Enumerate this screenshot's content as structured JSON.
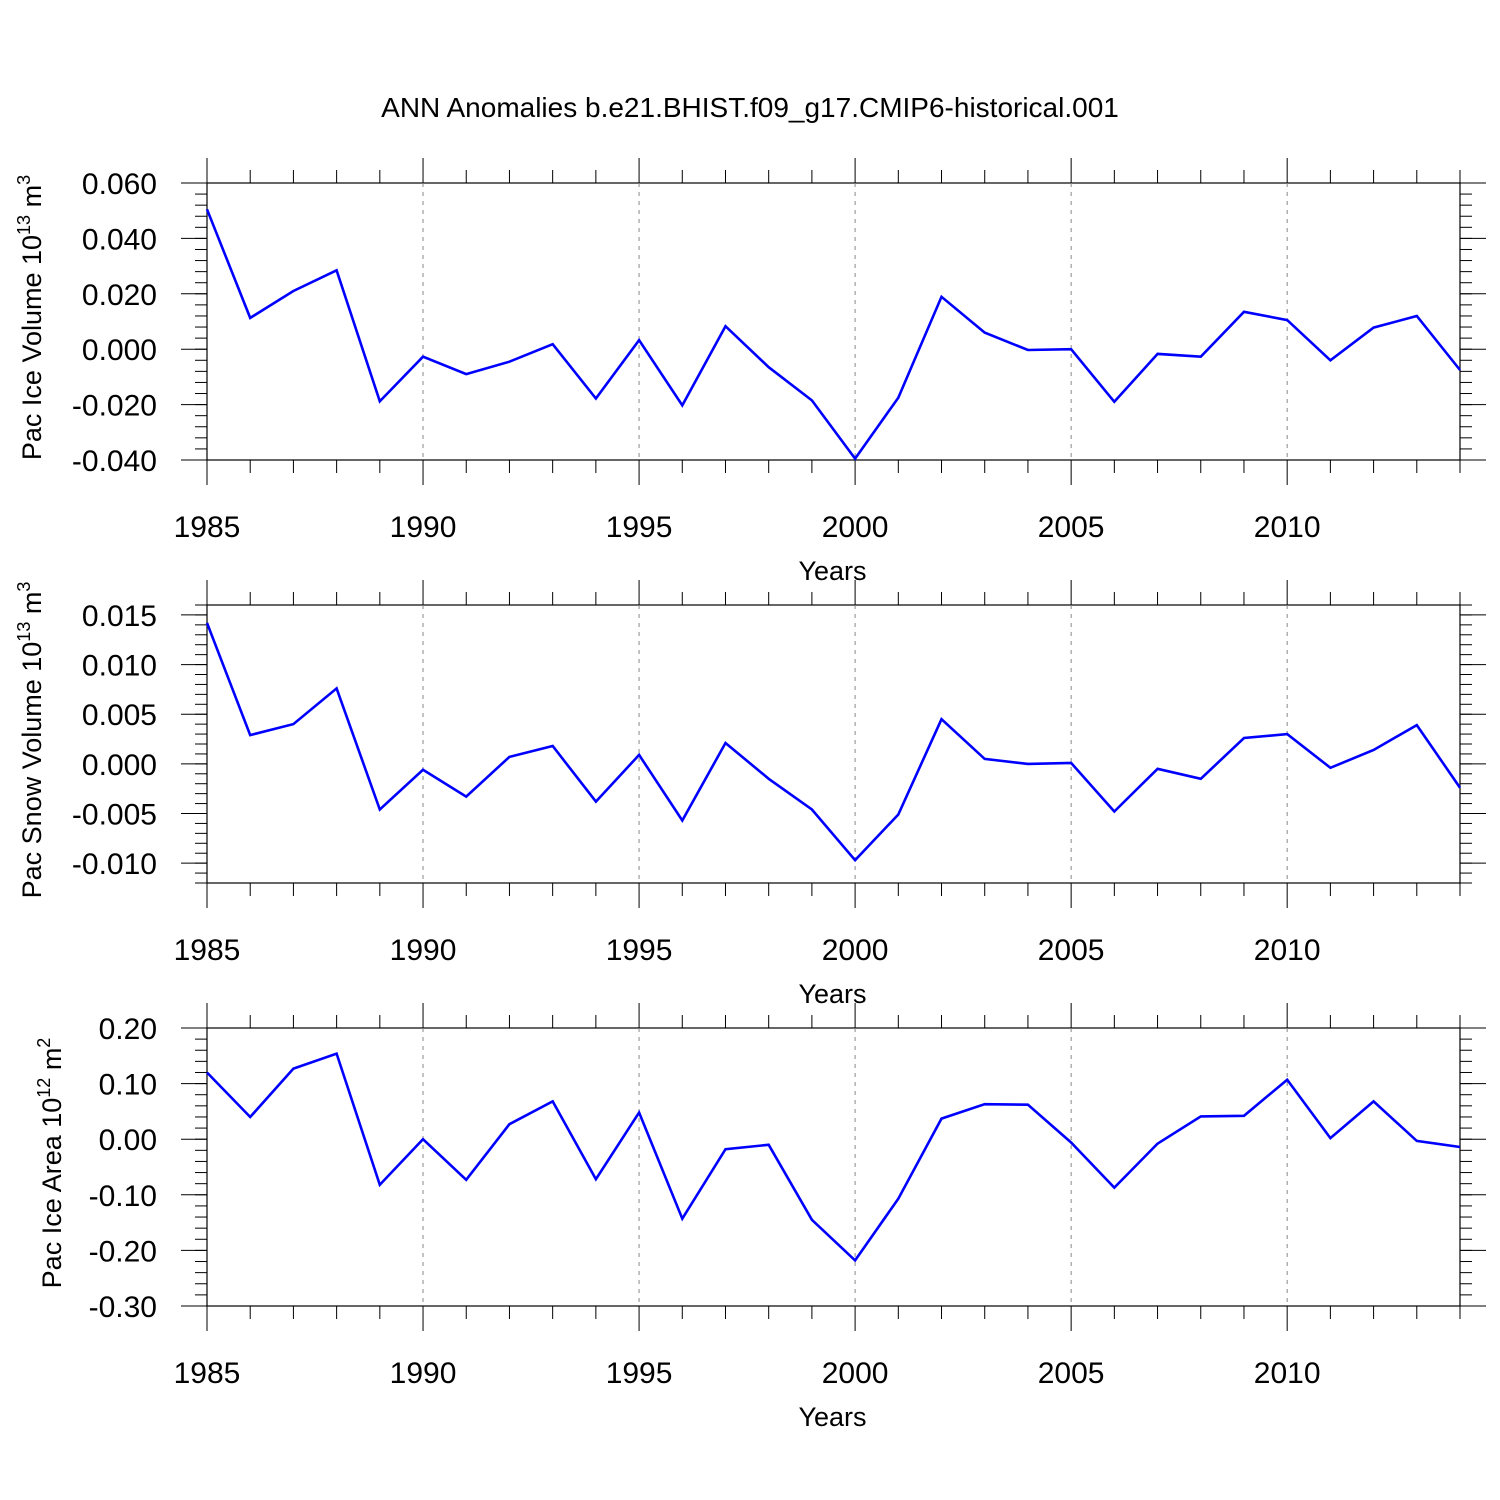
{
  "title": "ANN Anomalies b.e21.BHIST.f09_g17.CMIP6-historical.001",
  "chart_data": [
    {
      "type": "line",
      "ylabel_main": "Pac Ice Volume 10",
      "ylabel_exp": "13",
      "ylabel_unit": "m",
      "ylabel_unit_exp": "3",
      "xlabel": "Years",
      "xlim": [
        1985,
        2014
      ],
      "ylim": [
        -0.04,
        0.06
      ],
      "yticks": [
        -0.04,
        -0.02,
        0.0,
        0.02,
        0.04,
        0.06
      ],
      "ytick_labels": [
        "-0.040",
        "-0.020",
        "0.000",
        "0.020",
        "0.040",
        "0.060"
      ],
      "yminor_step": 0.004,
      "xticks": [
        1985,
        1990,
        1995,
        2000,
        2005,
        2010
      ],
      "xtick_labels": [
        "1985",
        "1990",
        "1995",
        "2000",
        "2005",
        "2010"
      ],
      "grid": "vertical dashed at major x ticks",
      "color": "#0000ff",
      "x": [
        1985,
        1986,
        1987,
        1988,
        1989,
        1990,
        1991,
        1992,
        1993,
        1994,
        1995,
        1996,
        1997,
        1998,
        1999,
        2000,
        2001,
        2002,
        2003,
        2004,
        2005,
        2006,
        2007,
        2008,
        2009,
        2010,
        2011,
        2012,
        2013,
        2014
      ],
      "values": [
        0.0505,
        0.0113,
        0.021,
        0.0285,
        -0.0188,
        -0.0027,
        -0.009,
        -0.0045,
        0.0018,
        -0.0178,
        0.0033,
        -0.0203,
        0.0083,
        -0.0065,
        -0.0185,
        -0.0395,
        -0.0175,
        0.0189,
        0.006,
        -0.0003,
        0.0,
        -0.019,
        -0.0017,
        -0.0027,
        0.0135,
        0.0105,
        -0.004,
        0.0078,
        0.012,
        -0.0075
      ]
    },
    {
      "type": "line",
      "ylabel_main": "Pac Snow Volume 10",
      "ylabel_exp": "13",
      "ylabel_unit": "m",
      "ylabel_unit_exp": "3",
      "xlabel": "Years",
      "xlim": [
        1985,
        2014
      ],
      "ylim": [
        -0.012,
        0.016
      ],
      "yticks": [
        -0.01,
        -0.005,
        0.0,
        0.005,
        0.01,
        0.015
      ],
      "ytick_labels": [
        "-0.010",
        "-0.005",
        "0.000",
        "0.005",
        "0.010",
        "0.015"
      ],
      "yminor_step": 0.001,
      "xticks": [
        1985,
        1990,
        1995,
        2000,
        2005,
        2010
      ],
      "xtick_labels": [
        "1985",
        "1990",
        "1995",
        "2000",
        "2005",
        "2010"
      ],
      "grid": "vertical dashed at major x ticks",
      "color": "#0000ff",
      "x": [
        1985,
        1986,
        1987,
        1988,
        1989,
        1990,
        1991,
        1992,
        1993,
        1994,
        1995,
        1996,
        1997,
        1998,
        1999,
        2000,
        2001,
        2002,
        2003,
        2004,
        2005,
        2006,
        2007,
        2008,
        2009,
        2010,
        2011,
        2012,
        2013,
        2014
      ],
      "values": [
        0.0142,
        0.0029,
        0.004,
        0.0076,
        -0.0046,
        -0.0006,
        -0.0033,
        0.0007,
        0.0018,
        -0.0038,
        0.0009,
        -0.0057,
        0.0021,
        -0.0015,
        -0.0046,
        -0.0097,
        -0.0051,
        0.0045,
        0.0005,
        0.0,
        0.0001,
        -0.0048,
        -0.0005,
        -0.0015,
        0.0026,
        0.003,
        -0.0004,
        0.0014,
        0.0039,
        -0.0024
      ]
    },
    {
      "type": "line",
      "ylabel_main": "Pac Ice Area 10",
      "ylabel_exp": "12",
      "ylabel_unit": "m",
      "ylabel_unit_exp": "2",
      "xlabel": "Years",
      "xlim": [
        1985,
        2014
      ],
      "ylim": [
        -0.3,
        0.2
      ],
      "yticks": [
        -0.3,
        -0.2,
        -0.1,
        0.0,
        0.1,
        0.2
      ],
      "ytick_labels": [
        "-0.30",
        "-0.20",
        "-0.10",
        "0.00",
        "0.10",
        "0.20"
      ],
      "yminor_step": 0.02,
      "xticks": [
        1985,
        1990,
        1995,
        2000,
        2005,
        2010
      ],
      "xtick_labels": [
        "1985",
        "1990",
        "1995",
        "2000",
        "2005",
        "2010"
      ],
      "grid": "vertical dashed at major x ticks",
      "color": "#0000ff",
      "x": [
        1985,
        1986,
        1987,
        1988,
        1989,
        1990,
        1991,
        1992,
        1993,
        1994,
        1995,
        1996,
        1997,
        1998,
        1999,
        2000,
        2001,
        2002,
        2003,
        2004,
        2005,
        2006,
        2007,
        2008,
        2009,
        2010,
        2011,
        2012,
        2013,
        2014
      ],
      "values": [
        0.12,
        0.04,
        0.127,
        0.154,
        -0.082,
        0.0,
        -0.073,
        0.027,
        0.068,
        -0.072,
        0.048,
        -0.143,
        -0.018,
        -0.01,
        -0.145,
        -0.218,
        -0.107,
        0.037,
        0.063,
        0.062,
        -0.006,
        -0.087,
        -0.008,
        0.041,
        0.042,
        0.107,
        0.002,
        0.068,
        -0.003,
        -0.014
      ]
    }
  ]
}
